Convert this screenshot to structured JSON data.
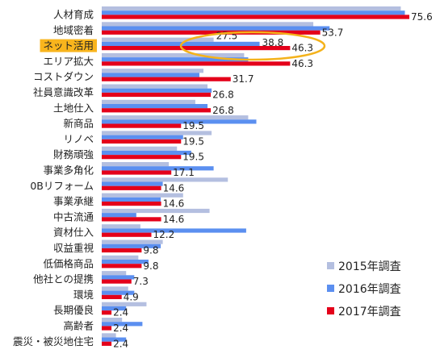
{
  "chart_data": {
    "type": "bar",
    "orientation": "horizontal",
    "categories": [
      "人材育成",
      "地域密着",
      "ネット活用",
      "エリア拡大",
      "コストダウン",
      "社員意識改革",
      "土地仕入",
      "新商品",
      "リノベ",
      "財務頑強",
      "事業多角化",
      "0Bリフォーム",
      "事業承継",
      "中古流通",
      "資材仕入",
      "収益重視",
      "低価格商品",
      "他社との提携",
      "環境",
      "長期優良",
      "高齢者",
      "震災・被災地住宅"
    ],
    "highlight_category": "ネット活用",
    "series": [
      {
        "name": "2015年調査",
        "color": "#b4bfe0",
        "values": [
          73.5,
          52.0,
          27.5,
          35.0,
          25.0,
          26.0,
          23.0,
          36.0,
          27.0,
          18.5,
          16.5,
          31.0,
          20.0,
          26.5,
          9.5,
          15.0,
          9.0,
          6.0,
          6.5,
          11.0,
          5.0,
          3.5
        ]
      },
      {
        "name": "2016年調査",
        "color": "#5b8ff0",
        "values": [
          74.5,
          56.0,
          38.8,
          36.0,
          24.0,
          27.0,
          26.0,
          38.0,
          20.0,
          22.0,
          27.5,
          15.0,
          14.5,
          8.5,
          35.5,
          14.5,
          11.5,
          8.0,
          8.0,
          6.0,
          10.0,
          6.0
        ]
      },
      {
        "name": "2017年調査",
        "color": "#e4001a",
        "values": [
          75.6,
          53.7,
          46.3,
          46.3,
          31.7,
          26.8,
          26.8,
          19.5,
          19.5,
          19.5,
          17.1,
          14.6,
          14.6,
          14.6,
          12.2,
          9.8,
          9.8,
          7.3,
          4.9,
          2.4,
          2.4,
          2.4
        ]
      }
    ],
    "value_labels": [
      {
        "category": "ネット活用",
        "series": "2015年調査",
        "text": "27.5"
      },
      {
        "category": "ネット活用",
        "series": "2016年調査",
        "text": "38.8"
      }
    ],
    "label_series": "2017年調査",
    "xlim": [
      0,
      80
    ],
    "grid": false,
    "legend": "bottom-right",
    "annotation": "ellipse-around-ネット活用"
  }
}
